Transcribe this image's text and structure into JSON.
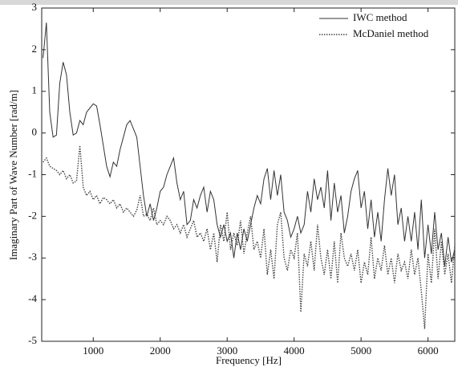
{
  "chart_data": {
    "type": "line",
    "xlabel": "Frequency [Hz]",
    "ylabel": "Imaginary Part of Wave Number [rad/m]",
    "xlim": [
      230,
      6400
    ],
    "xticks": [
      1000,
      2000,
      3000,
      4000,
      5000,
      6000
    ],
    "ylim": [
      -5,
      3
    ],
    "yticks": [
      -5,
      -4,
      -3,
      -2,
      -1,
      0,
      1,
      2,
      3
    ],
    "legend": "upper-right",
    "x": [
      250,
      300,
      350,
      400,
      450,
      500,
      550,
      600,
      650,
      700,
      750,
      800,
      850,
      900,
      950,
      1000,
      1050,
      1100,
      1150,
      1200,
      1250,
      1300,
      1350,
      1400,
      1450,
      1500,
      1550,
      1600,
      1650,
      1700,
      1750,
      1800,
      1850,
      1900,
      1950,
      2000,
      2050,
      2100,
      2150,
      2200,
      2250,
      2300,
      2350,
      2400,
      2450,
      2500,
      2550,
      2600,
      2650,
      2700,
      2750,
      2800,
      2850,
      2900,
      2950,
      3000,
      3050,
      3100,
      3150,
      3200,
      3250,
      3300,
      3350,
      3400,
      3450,
      3500,
      3550,
      3600,
      3650,
      3700,
      3750,
      3800,
      3850,
      3900,
      3950,
      4000,
      4050,
      4100,
      4150,
      4200,
      4250,
      4300,
      4350,
      4400,
      4450,
      4500,
      4550,
      4600,
      4650,
      4700,
      4750,
      4800,
      4850,
      4900,
      4950,
      5000,
      5050,
      5100,
      5150,
      5200,
      5250,
      5300,
      5350,
      5400,
      5450,
      5500,
      5550,
      5600,
      5650,
      5700,
      5750,
      5800,
      5850,
      5900,
      5950,
      6000,
      6050,
      6100,
      6150,
      6200,
      6250,
      6300,
      6350,
      6400
    ],
    "series": [
      {
        "name": "IWC method",
        "color": "#333333",
        "dash": "solid",
        "values": [
          1.8,
          2.65,
          0.5,
          -0.1,
          -0.05,
          1.2,
          1.7,
          1.4,
          0.5,
          -0.05,
          0.0,
          0.3,
          0.2,
          0.5,
          0.6,
          0.7,
          0.65,
          0.2,
          -0.3,
          -0.8,
          -1.05,
          -0.7,
          -0.8,
          -0.4,
          -0.1,
          0.2,
          0.3,
          0.1,
          -0.1,
          -0.8,
          -1.5,
          -2.0,
          -1.7,
          -2.1,
          -1.8,
          -1.4,
          -1.3,
          -1.0,
          -0.8,
          -0.6,
          -1.2,
          -1.6,
          -1.4,
          -2.2,
          -2.1,
          -1.6,
          -1.8,
          -1.5,
          -1.3,
          -1.9,
          -1.4,
          -1.6,
          -2.2,
          -2.5,
          -2.2,
          -2.6,
          -2.4,
          -3.0,
          -2.4,
          -2.8,
          -2.3,
          -2.6,
          -2.2,
          -1.8,
          -1.5,
          -1.7,
          -1.1,
          -0.85,
          -1.6,
          -0.9,
          -1.5,
          -1.0,
          -1.9,
          -2.1,
          -2.5,
          -2.3,
          -2.0,
          -2.4,
          -2.2,
          -1.4,
          -1.9,
          -1.1,
          -1.6,
          -1.3,
          -1.8,
          -0.9,
          -2.1,
          -1.2,
          -1.9,
          -1.5,
          -2.4,
          -2.0,
          -1.4,
          -1.1,
          -0.9,
          -1.8,
          -1.4,
          -2.3,
          -1.6,
          -2.5,
          -1.9,
          -2.6,
          -1.6,
          -0.85,
          -1.5,
          -1.0,
          -2.2,
          -1.8,
          -2.6,
          -2.0,
          -2.6,
          -1.9,
          -2.8,
          -1.6,
          -3.0,
          -2.2,
          -2.9,
          -1.9,
          -2.8,
          -2.4,
          -3.2,
          -2.5,
          -3.1,
          -2.8
        ]
      },
      {
        "name": "McDaniel method",
        "color": "#444444",
        "dash": "dotted",
        "values": [
          -0.7,
          -0.6,
          -0.8,
          -0.85,
          -0.9,
          -1.0,
          -0.9,
          -1.1,
          -1.0,
          -1.2,
          -1.15,
          -0.3,
          -1.3,
          -1.5,
          -1.4,
          -1.6,
          -1.5,
          -1.7,
          -1.55,
          -1.6,
          -1.7,
          -1.6,
          -1.8,
          -1.7,
          -1.9,
          -1.8,
          -1.9,
          -2.0,
          -1.85,
          -1.5,
          -2.0,
          -1.95,
          -2.1,
          -1.8,
          -2.2,
          -2.1,
          -2.2,
          -2.0,
          -2.1,
          -2.3,
          -2.2,
          -2.4,
          -2.2,
          -2.5,
          -2.3,
          -2.1,
          -2.5,
          -2.4,
          -2.6,
          -2.3,
          -2.8,
          -2.4,
          -3.1,
          -2.2,
          -2.6,
          -1.9,
          -2.8,
          -2.4,
          -2.7,
          -2.1,
          -2.9,
          -2.4,
          -2.0,
          -2.8,
          -2.6,
          -3.0,
          -2.3,
          -3.4,
          -2.8,
          -3.5,
          -2.2,
          -1.9,
          -3.0,
          -3.3,
          -2.8,
          -3.0,
          -2.4,
          -4.3,
          -2.9,
          -3.2,
          -2.6,
          -3.3,
          -2.2,
          -3.0,
          -3.4,
          -2.8,
          -3.5,
          -2.6,
          -3.6,
          -2.4,
          -3.0,
          -3.2,
          -2.9,
          -3.3,
          -2.8,
          -3.6,
          -3.1,
          -3.4,
          -2.5,
          -3.5,
          -3.0,
          -3.3,
          -2.7,
          -3.4,
          -3.0,
          -3.6,
          -2.9,
          -3.3,
          -3.1,
          -3.5,
          -2.8,
          -3.4,
          -3.0,
          -3.8,
          -4.7,
          -2.9,
          -3.6,
          -2.3,
          -3.5,
          -2.6,
          -3.4,
          -2.9,
          -3.6,
          -2.7
        ]
      }
    ]
  }
}
